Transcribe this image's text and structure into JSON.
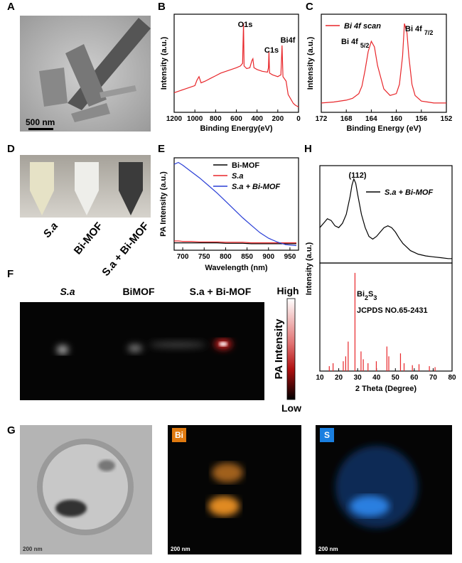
{
  "panel_labels": [
    "A",
    "B",
    "C",
    "D",
    "E",
    "F",
    "G",
    "H"
  ],
  "panel_a": {
    "scale_bar": "500 nm"
  },
  "panel_d": {
    "labels": [
      "S.a",
      "Bi-MOF",
      "S.a + Bi-MOF"
    ]
  },
  "panel_f": {
    "labels": [
      "S.a",
      "BiMOF",
      "S.a + Bi-MOF"
    ],
    "colorbar": {
      "high": "High",
      "low": "Low",
      "title": "PA Intensity"
    }
  },
  "panel_g": {
    "badges": [
      "Bi",
      "S"
    ],
    "scale_bars": [
      "200 nm",
      "200 nm",
      "200 nm"
    ]
  },
  "chart_data": [
    {
      "type": "line",
      "xlabel": "Binding Energy(eV)",
      "ylabel": "Intensity (a.u.)",
      "x": [
        1200,
        1150,
        1100,
        1050,
        1000,
        980,
        960,
        940,
        900,
        850,
        800,
        750,
        700,
        650,
        600,
        560,
        540,
        531,
        525,
        500,
        470,
        450,
        440,
        430,
        400,
        350,
        300,
        290,
        285,
        280,
        250,
        200,
        170,
        164,
        159,
        150,
        120,
        100,
        50,
        30,
        0
      ],
      "series": [
        {
          "color": "#e8262a",
          "values": [
            22,
            24,
            26,
            28,
            30,
            36,
            40,
            33,
            35,
            38,
            41,
            44,
            46,
            48,
            50,
            52,
            55,
            100,
            52,
            49,
            50,
            58,
            60,
            50,
            48,
            46,
            45,
            50,
            68,
            44,
            42,
            40,
            42,
            60,
            75,
            40,
            35,
            20,
            10,
            8,
            6
          ]
        }
      ],
      "xlim": [
        1200,
        0
      ],
      "xticks": [
        1200,
        1000,
        800,
        600,
        400,
        200,
        0
      ],
      "ylim": [
        0,
        110
      ],
      "annotations": [
        {
          "text": "O1s"
        },
        {
          "text": "C1s"
        },
        {
          "text": "Bi4f"
        }
      ]
    },
    {
      "type": "line",
      "xlabel": "Binding Energy (eV)",
      "ylabel": "Intensity (a.u.)",
      "x": [
        172,
        170,
        168,
        167,
        166,
        165.5,
        165,
        164.5,
        164,
        163.5,
        163,
        162,
        161,
        160,
        159.5,
        159,
        158.7,
        158.3,
        158,
        157.5,
        157,
        156,
        155,
        154,
        153,
        152
      ],
      "series": [
        {
          "name": "Bi 4f scan",
          "color": "#e8262a",
          "values": [
            10,
            11,
            13,
            15,
            20,
            28,
            45,
            65,
            76,
            70,
            50,
            25,
            18,
            20,
            30,
            60,
            95,
            85,
            60,
            30,
            18,
            12,
            11,
            10,
            10,
            10
          ]
        }
      ],
      "xlim": [
        172,
        152
      ],
      "xticks": [
        172,
        168,
        164,
        160,
        156,
        152
      ],
      "ylim": [
        0,
        105
      ],
      "annotations": [
        {
          "parts": [
            "Bi 4f",
            "5/2"
          ]
        },
        {
          "parts": [
            "Bi 4f",
            "7/2"
          ]
        }
      ]
    },
    {
      "type": "line",
      "xlabel": "Wavelength (nm)",
      "ylabel": "PA Intensity (a.u.)",
      "x": [
        680,
        690,
        700,
        720,
        740,
        760,
        780,
        800,
        820,
        840,
        860,
        880,
        900,
        920,
        940,
        965
      ],
      "series": [
        {
          "name": "Bi-MOF",
          "color": "#000000",
          "values": [
            8,
            8,
            8,
            8,
            8,
            8,
            8,
            7.5,
            7.5,
            7.5,
            7,
            7,
            7,
            7,
            7,
            7
          ]
        },
        {
          "name": "S.a",
          "color": "#e8262a",
          "values": [
            10,
            10,
            9.5,
            9.5,
            9,
            9,
            9,
            8.5,
            8.5,
            8.5,
            8,
            8,
            8,
            8,
            8,
            8
          ]
        },
        {
          "name": "S.a + Bi-MOF",
          "color": "#2a3fd6",
          "values": [
            93,
            95,
            92,
            85,
            78,
            70,
            62,
            53,
            44,
            35,
            27,
            19,
            13,
            9,
            6,
            5
          ]
        }
      ],
      "xlim": [
        680,
        970
      ],
      "xticks": [
        700,
        750,
        800,
        850,
        900,
        950
      ],
      "ylim": [
        0,
        100
      ]
    },
    {
      "type": "line",
      "ylabel": "Intensity (a.u.)",
      "x": [
        10,
        12,
        14,
        16,
        18,
        20,
        22,
        24,
        26,
        27,
        28,
        29,
        30,
        32,
        34,
        36,
        38,
        40,
        42,
        44,
        46,
        48,
        50,
        52,
        54,
        56,
        58,
        60,
        62,
        66,
        70,
        74,
        78,
        80
      ],
      "series": [
        {
          "name": "S.a + Bi-MOF",
          "color": "#000000",
          "values": [
            40,
            45,
            50,
            48,
            42,
            40,
            45,
            55,
            75,
            88,
            95,
            90,
            78,
            55,
            40,
            30,
            27,
            30,
            35,
            40,
            42,
            40,
            35,
            28,
            22,
            18,
            14,
            12,
            10,
            8,
            7,
            6,
            5,
            5
          ]
        }
      ],
      "xlim": [
        10,
        80
      ],
      "ylim": [
        0,
        110
      ],
      "annotations": [
        {
          "text": "(112)"
        }
      ]
    },
    {
      "type": "stick",
      "xlabel": "2 Theta (Degree)",
      "x": [
        15,
        17,
        22.4,
        23.7,
        25,
        28.6,
        31.8,
        33,
        35.5,
        39.9,
        45.5,
        46.5,
        52.7,
        54.6,
        59,
        62.5,
        68,
        71
      ],
      "series": [
        {
          "color": "#e8262a",
          "values": [
            5,
            8,
            10,
            15,
            30,
            100,
            20,
            12,
            8,
            10,
            25,
            15,
            18,
            8,
            6,
            7,
            5,
            4
          ]
        }
      ],
      "xlim": [
        10,
        80
      ],
      "xticks": [
        10,
        20,
        30,
        40,
        50,
        60,
        70,
        80
      ],
      "ylim": [
        0,
        110
      ],
      "annotations": [
        {
          "parts": [
            "Bi",
            "2",
            "S",
            "3"
          ]
        },
        {
          "text": "JCPDS NO.65-2431"
        }
      ]
    }
  ]
}
